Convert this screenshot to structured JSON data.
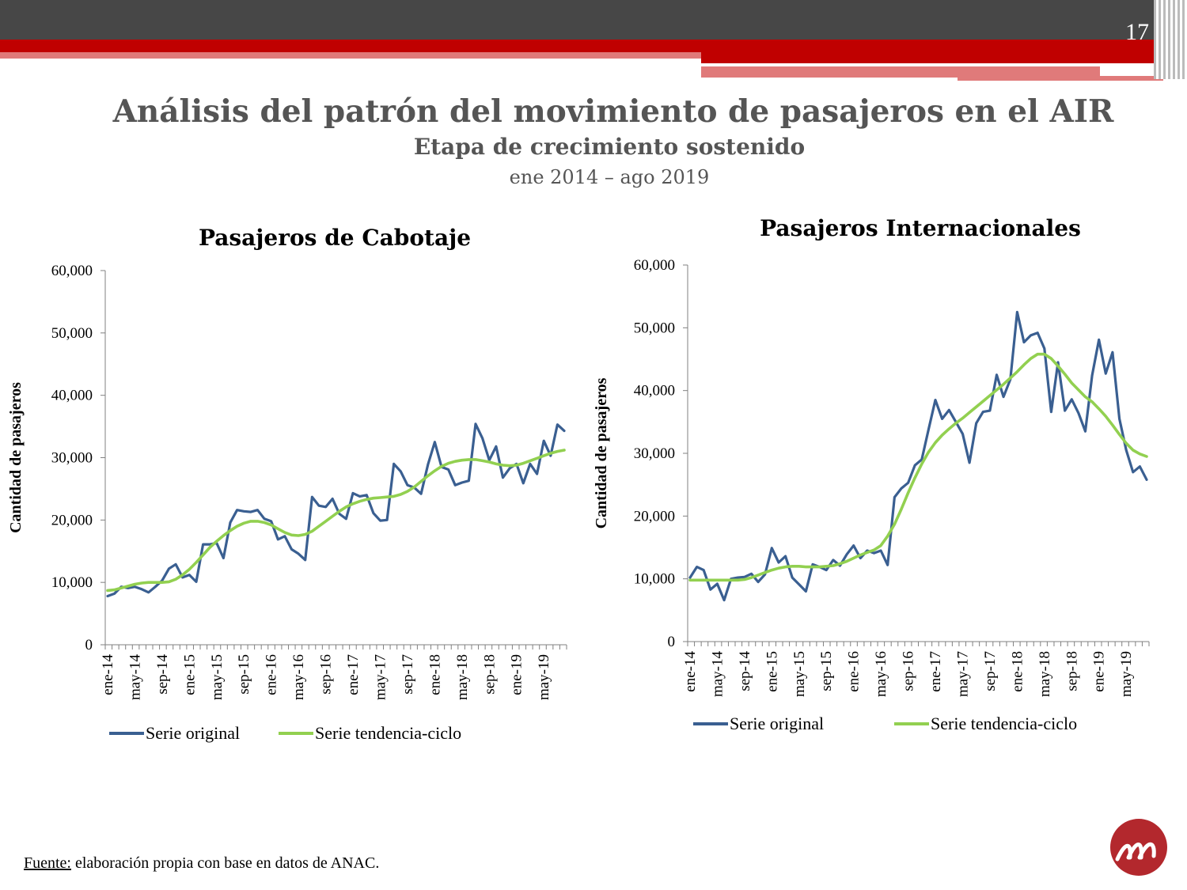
{
  "slide": {
    "page_number": "17",
    "title": "Análisis del patrón del movimiento de pasajeros en el AIR",
    "subtitle": "Etapa de crecimiento sostenido",
    "period": "ene 2014 – ago 2019",
    "source_label": "Fuente:",
    "source_text": " elaboración propia con base en datos de ANAC."
  },
  "colors": {
    "bar_dark": "#474747",
    "accent_red": "#c00000",
    "accent_pink": "#e07a7a",
    "series_original": "#3a5f91",
    "series_trend": "#92d050"
  },
  "logo": {
    "icon": "logo-swirl-icon"
  },
  "chart_data": [
    {
      "type": "line",
      "title": "Pasajeros de Cabotaje",
      "ylabel": "Cantidad de pasajeros",
      "ylim": [
        0,
        60000
      ],
      "yticks": [
        "0",
        "10,000",
        "20,000",
        "30,000",
        "40,000",
        "50,000",
        "60,000"
      ],
      "xticks": [
        "ene-14",
        "may-14",
        "sep-14",
        "ene-15",
        "may-15",
        "sep-15",
        "ene-16",
        "may-16",
        "sep-16",
        "ene-17",
        "may-17",
        "sep-17",
        "ene-18",
        "may-18",
        "sep-18",
        "ene-19",
        "may-19"
      ],
      "x_start": "ene-14",
      "x_end": "ago-19",
      "months": 68,
      "series": [
        {
          "name": "Serie original",
          "values": [
            7800,
            8200,
            9300,
            9100,
            9300,
            8900,
            8400,
            9300,
            10300,
            12200,
            12900,
            10800,
            11200,
            10100,
            16100,
            16100,
            16300,
            13900,
            19600,
            21600,
            21400,
            21300,
            21600,
            20200,
            19800,
            16900,
            17400,
            15300,
            14600,
            13600,
            23700,
            22300,
            22100,
            23400,
            21000,
            20200,
            24300,
            23800,
            24000,
            21100,
            19900,
            20000,
            29000,
            27800,
            25600,
            25200,
            24200,
            28900,
            32500,
            28500,
            28100,
            25600,
            26000,
            26300,
            35400,
            33100,
            29600,
            31800,
            26800,
            28300,
            29000,
            25900,
            29000,
            27400,
            32700,
            30300,
            35300,
            34300
          ]
        },
        {
          "name": "Serie tendencia-ciclo",
          "values": [
            8700,
            8800,
            9100,
            9400,
            9700,
            9900,
            10000,
            10000,
            10000,
            10100,
            10500,
            11200,
            12100,
            13200,
            14400,
            15600,
            16600,
            17500,
            18300,
            19000,
            19500,
            19800,
            19800,
            19600,
            19200,
            18600,
            18000,
            17600,
            17500,
            17700,
            18200,
            19000,
            19800,
            20600,
            21400,
            22100,
            22600,
            23000,
            23300,
            23500,
            23600,
            23700,
            23800,
            24100,
            24600,
            25300,
            26200,
            27100,
            27900,
            28600,
            29100,
            29400,
            29600,
            29700,
            29700,
            29500,
            29300,
            29000,
            28800,
            28700,
            28800,
            29100,
            29500,
            29900,
            30300,
            30700,
            31000,
            31200
          ]
        }
      ],
      "legend": "bottom"
    },
    {
      "type": "line",
      "title": "Pasajeros Internacionales",
      "ylabel": "Cantidad de pasajeros",
      "ylim": [
        0,
        60000
      ],
      "yticks": [
        "0",
        "10,000",
        "20,000",
        "30,000",
        "40,000",
        "50,000",
        "60,000"
      ],
      "xticks": [
        "ene-14",
        "may-14",
        "sep-14",
        "ene-15",
        "may-15",
        "sep-15",
        "ene-16",
        "may-16",
        "sep-16",
        "ene-17",
        "may-17",
        "sep-17",
        "ene-18",
        "may-18",
        "sep-18",
        "ene-19",
        "may-19"
      ],
      "x_start": "ene-14",
      "x_end": "ago-19",
      "months": 68,
      "series": [
        {
          "name": "Serie original",
          "values": [
            10200,
            11900,
            11400,
            8300,
            9200,
            6600,
            10000,
            10200,
            10300,
            10800,
            9500,
            10700,
            14900,
            12600,
            13600,
            10200,
            9100,
            8000,
            12300,
            11900,
            11400,
            13000,
            12100,
            13900,
            15300,
            13300,
            14500,
            14100,
            14500,
            12200,
            23000,
            24400,
            25300,
            28100,
            29000,
            33800,
            38500,
            35500,
            36900,
            35000,
            33100,
            28500,
            34800,
            36600,
            36800,
            42500,
            39000,
            41800,
            52500,
            47700,
            48800,
            49200,
            46700,
            36600,
            44500,
            36800,
            38600,
            36400,
            33500,
            42400,
            48100,
            42700,
            46100,
            35500,
            30500,
            27000,
            27900,
            25800
          ]
        },
        {
          "name": "Serie tendencia-ciclo",
          "values": [
            9800,
            9800,
            9800,
            9800,
            9800,
            9800,
            9800,
            9800,
            9900,
            10200,
            10600,
            11000,
            11400,
            11700,
            11900,
            12000,
            12000,
            11900,
            11900,
            11900,
            12000,
            12100,
            12400,
            12800,
            13300,
            13800,
            14200,
            14600,
            15300,
            16800,
            18700,
            21100,
            23700,
            26100,
            28300,
            30200,
            31700,
            32900,
            33900,
            34800,
            35600,
            36500,
            37400,
            38300,
            39200,
            40100,
            41000,
            42000,
            43000,
            44100,
            45100,
            45800,
            45800,
            45100,
            43900,
            42600,
            41200,
            40100,
            39000,
            38200,
            37100,
            35900,
            34500,
            33000,
            31600,
            30500,
            29900,
            29500
          ]
        }
      ],
      "legend": "bottom"
    }
  ]
}
